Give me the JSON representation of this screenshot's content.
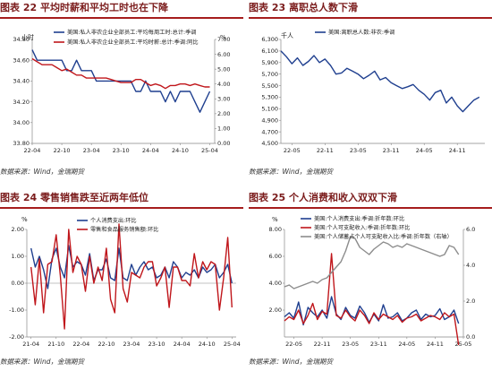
{
  "panels": [
    {
      "title": "图表 22 平均时薪和平均工时也在下降",
      "source": "数据来源：Wind，金瑞期货",
      "chart_data": {
        "type": "line",
        "left_unit": "小时",
        "right_unit": "%",
        "left_ticks": [
          "33.80",
          "34.00",
          "34.20",
          "34.40",
          "34.60",
          "34.80"
        ],
        "left_lim": [
          33.8,
          34.8
        ],
        "right_ticks": [
          "0.00",
          "1.00",
          "2.00",
          "3.00",
          "4.00",
          "5.00",
          "6.00",
          "7.00"
        ],
        "right_lim": [
          0,
          7
        ],
        "x_ticks": [
          "22-04",
          "22-10",
          "23-04",
          "23-10",
          "24-04",
          "24-10",
          "25-04"
        ],
        "series": [
          {
            "name": "美国:私人非农企业全部员工:平均每周工时:总计:季调",
            "axis": "left",
            "color": "#1f3f8f",
            "x": [
              "22-04",
              "22-05",
              "22-06",
              "22-07",
              "22-08",
              "22-09",
              "22-10",
              "22-11",
              "22-12",
              "23-01",
              "23-02",
              "23-03",
              "23-04",
              "23-05",
              "23-06",
              "23-07",
              "23-08",
              "23-09",
              "23-10",
              "23-11",
              "23-12",
              "24-01",
              "24-02",
              "24-03",
              "24-04",
              "24-05",
              "24-06",
              "24-07",
              "24-08",
              "24-09",
              "24-10",
              "24-11",
              "24-12",
              "25-01",
              "25-02",
              "25-03",
              "25-04"
            ],
            "values": [
              34.7,
              34.6,
              34.6,
              34.6,
              34.6,
              34.6,
              34.6,
              34.5,
              34.5,
              34.6,
              34.5,
              34.5,
              34.5,
              34.4,
              34.4,
              34.4,
              34.4,
              34.4,
              34.4,
              34.4,
              34.4,
              34.3,
              34.3,
              34.4,
              34.3,
              34.3,
              34.3,
              34.2,
              34.3,
              34.2,
              34.3,
              34.3,
              34.3,
              34.2,
              34.1,
              34.2,
              34.3
            ]
          },
          {
            "name": "美国:私人非农企业全部员工:平均时薪:总计:季调:同比",
            "axis": "right",
            "color": "#c0161b",
            "x": [
              "22-04",
              "22-05",
              "22-06",
              "22-07",
              "22-08",
              "22-09",
              "22-10",
              "22-11",
              "22-12",
              "23-01",
              "23-02",
              "23-03",
              "23-04",
              "23-05",
              "23-06",
              "23-07",
              "23-08",
              "23-09",
              "23-10",
              "23-11",
              "23-12",
              "24-01",
              "24-02",
              "24-03",
              "24-04",
              "24-05",
              "24-06",
              "24-07",
              "24-08",
              "24-09",
              "24-10",
              "24-11",
              "24-12",
              "25-01",
              "25-02",
              "25-03",
              "25-04"
            ],
            "values": [
              5.7,
              5.5,
              5.3,
              5.3,
              5.3,
              5.1,
              4.9,
              5.0,
              4.8,
              4.6,
              4.6,
              4.4,
              4.4,
              4.4,
              4.4,
              4.4,
              4.3,
              4.2,
              4.1,
              4.1,
              4.1,
              4.3,
              4.3,
              4.1,
              3.9,
              4.0,
              3.9,
              3.7,
              3.9,
              3.9,
              4.0,
              4.0,
              3.9,
              4.0,
              3.9,
              3.8,
              3.8
            ]
          }
        ]
      }
    },
    {
      "title": "图表 23 离职总人数下滑",
      "source": "数据来源：Wind，金瑞期货",
      "chart_data": {
        "type": "line",
        "left_unit": "千人",
        "left_ticks": [
          "4,500",
          "4,700",
          "4,900",
          "5,100",
          "5,300",
          "5,500",
          "5,700",
          "5,900",
          "6,100",
          "6,300"
        ],
        "left_lim": [
          4500,
          6300
        ],
        "x_ticks": [
          "22-05",
          "22-11",
          "23-05",
          "23-11",
          "24-05",
          "24-11"
        ],
        "series": [
          {
            "name": "美国:离职总人数:非农:季调",
            "axis": "left",
            "color": "#1f3f8f",
            "x": [
              "22-03",
              "22-04",
              "22-05",
              "22-06",
              "22-07",
              "22-08",
              "22-09",
              "22-10",
              "22-11",
              "22-12",
              "23-01",
              "23-02",
              "23-03",
              "23-04",
              "23-05",
              "23-06",
              "23-07",
              "23-08",
              "23-09",
              "23-10",
              "23-11",
              "23-12",
              "24-01",
              "24-02",
              "24-03",
              "24-04",
              "24-05",
              "24-06",
              "24-07",
              "24-08",
              "24-09",
              "24-10",
              "24-11",
              "24-12",
              "25-01",
              "25-02",
              "25-03"
            ],
            "values": [
              6100,
              6000,
              5880,
              5980,
              5850,
              5920,
              6020,
              5900,
              5960,
              5850,
              5700,
              5720,
              5800,
              5750,
              5700,
              5620,
              5680,
              5750,
              5600,
              5640,
              5550,
              5500,
              5450,
              5480,
              5520,
              5420,
              5350,
              5250,
              5380,
              5420,
              5200,
              5300,
              5150,
              5050,
              5150,
              5250,
              5300
            ]
          }
        ]
      }
    },
    {
      "title": "图表 24 零售销售跌至近两年低位",
      "source": "数据来源：Wind，金瑞期货",
      "chart_data": {
        "type": "line",
        "left_unit": "%",
        "left_ticks": [
          "-2.00",
          "-1.00",
          "0.00",
          "1.00",
          "2.00"
        ],
        "left_lim": [
          -2,
          2
        ],
        "x_ticks": [
          "21-04",
          "21-10",
          "22-04",
          "22-10",
          "23-04",
          "23-10",
          "24-04",
          "24-10",
          "25-04"
        ],
        "series": [
          {
            "name": "个人消费支出:环比",
            "axis": "left",
            "color": "#1f3f8f",
            "x": [
              "21-04",
              "21-05",
              "21-06",
              "21-07",
              "21-08",
              "21-09",
              "21-10",
              "21-11",
              "21-12",
              "22-01",
              "22-02",
              "22-03",
              "22-04",
              "22-05",
              "22-06",
              "22-07",
              "22-08",
              "22-09",
              "22-10",
              "22-11",
              "22-12",
              "23-01",
              "23-02",
              "23-03",
              "23-04",
              "23-05",
              "23-06",
              "23-07",
              "23-08",
              "23-09",
              "23-10",
              "23-11",
              "23-12",
              "24-01",
              "24-02",
              "24-03",
              "24-04",
              "24-05",
              "24-06",
              "24-07",
              "24-08",
              "24-09",
              "24-10",
              "24-11",
              "24-12",
              "25-01",
              "25-02",
              "25-03",
              "25-04"
            ],
            "values": [
              1.3,
              0.6,
              1.0,
              0.5,
              -0.2,
              0.9,
              1.3,
              0.6,
              0.2,
              1.4,
              0.6,
              0.8,
              0.7,
              0.3,
              1.1,
              0.1,
              0.5,
              0.5,
              0.9,
              0.2,
              0.1,
              1.3,
              0.2,
              0.1,
              0.7,
              0.3,
              0.6,
              0.8,
              0.5,
              0.6,
              0.2,
              0.3,
              0.6,
              0.2,
              0.8,
              0.6,
              0.2,
              0.4,
              0.3,
              0.5,
              0.2,
              0.6,
              0.4,
              0.5,
              0.7,
              0.2,
              0.4,
              0.7,
              0.0
            ]
          },
          {
            "name": "零售和食品服务销售额:环比",
            "axis": "left",
            "color": "#c0161b",
            "x": [
              "21-04",
              "21-05",
              "21-06",
              "21-07",
              "21-08",
              "21-09",
              "21-10",
              "21-11",
              "21-12",
              "22-01",
              "22-02",
              "22-03",
              "22-04",
              "22-05",
              "22-06",
              "22-07",
              "22-08",
              "22-09",
              "22-10",
              "22-11",
              "22-12",
              "23-01",
              "23-02",
              "23-03",
              "23-04",
              "23-05",
              "23-06",
              "23-07",
              "23-08",
              "23-09",
              "23-10",
              "23-11",
              "23-12",
              "24-01",
              "24-02",
              "24-03",
              "24-04",
              "24-05",
              "24-06",
              "24-07",
              "24-08",
              "24-09",
              "24-10",
              "24-11",
              "24-12",
              "25-01",
              "25-02",
              "25-03",
              "25-04"
            ],
            "values": [
              0.6,
              -0.8,
              0.9,
              -1.1,
              0.7,
              0.8,
              1.8,
              0.3,
              -1.7,
              2.0,
              0.4,
              1.0,
              0.7,
              -0.3,
              1.0,
              0.0,
              0.6,
              0.1,
              1.3,
              -0.6,
              -1.1,
              2.2,
              -0.2,
              -0.7,
              0.4,
              0.3,
              0.2,
              0.6,
              0.8,
              0.8,
              -0.1,
              0.2,
              0.6,
              -0.9,
              0.6,
              0.6,
              0.1,
              0.1,
              -0.1,
              1.1,
              0.2,
              0.8,
              0.5,
              0.8,
              0.7,
              -1.0,
              0.2,
              1.7,
              -0.9
            ]
          }
        ]
      }
    },
    {
      "title": "图表 25 个人消费和收入双双下滑",
      "source": "数据来源：Wind，金瑞期货",
      "chart_data": {
        "type": "line",
        "left_unit": "%",
        "left_ticks": [
          "2.00",
          "4.00",
          "6.00",
          "8.00"
        ],
        "left_lim": [
          0,
          8
        ],
        "right_ticks": [
          "0.0",
          "2.0",
          "4.0",
          "6.0"
        ],
        "right_lim": [
          0,
          6
        ],
        "x_ticks": [
          "22-05",
          "22-11",
          "23-05",
          "23-11",
          "24-05",
          "24-11",
          "25-05"
        ],
        "series": [
          {
            "name": "美国:个人消费支出:季调:折年数:环比",
            "axis": "left",
            "color": "#1f3f8f",
            "x": [
              "22-03",
              "22-04",
              "22-05",
              "22-06",
              "22-07",
              "22-08",
              "22-09",
              "22-10",
              "22-11",
              "22-12",
              "23-01",
              "23-02",
              "23-03",
              "23-04",
              "23-05",
              "23-06",
              "23-07",
              "23-08",
              "23-09",
              "23-10",
              "23-11",
              "23-12",
              "24-01",
              "24-02",
              "24-03",
              "24-04",
              "24-05",
              "24-06",
              "24-07",
              "24-08",
              "24-09",
              "24-10",
              "24-11",
              "24-12",
              "25-01",
              "25-02",
              "25-03",
              "25-04"
            ],
            "values": [
              1.5,
              1.8,
              1.4,
              2.6,
              0.9,
              2.2,
              1.8,
              1.5,
              2.0,
              1.4,
              3.0,
              1.7,
              1.3,
              2.2,
              1.6,
              1.4,
              2.3,
              1.8,
              1.1,
              1.7,
              1.2,
              2.4,
              1.4,
              1.5,
              1.8,
              1.2,
              1.4,
              1.8,
              2.0,
              1.3,
              1.7,
              1.5,
              1.6,
              2.1,
              1.3,
              1.5,
              2.0,
              1.0
            ]
          },
          {
            "name": "美国:个人可支配收入:季调:折年数:环比",
            "axis": "left",
            "color": "#c0161b",
            "x": [
              "22-03",
              "22-04",
              "22-05",
              "22-06",
              "22-07",
              "22-08",
              "22-09",
              "22-10",
              "22-11",
              "22-12",
              "23-01",
              "23-02",
              "23-03",
              "23-04",
              "23-05",
              "23-06",
              "23-07",
              "23-08",
              "23-09",
              "23-10",
              "23-11",
              "23-12",
              "24-01",
              "24-02",
              "24-03",
              "24-04",
              "24-05",
              "24-06",
              "24-07",
              "24-08",
              "24-09",
              "24-10",
              "24-11",
              "24-12",
              "25-01",
              "25-02",
              "25-03",
              "25-04"
            ],
            "values": [
              1.2,
              1.5,
              1.3,
              2.0,
              1.0,
              1.6,
              2.5,
              1.3,
              1.9,
              1.7,
              6.2,
              1.6,
              1.4,
              2.0,
              1.5,
              1.2,
              2.0,
              1.6,
              1.0,
              1.8,
              1.3,
              1.7,
              1.5,
              1.3,
              1.6,
              1.1,
              1.4,
              1.5,
              1.7,
              1.2,
              1.4,
              1.6,
              1.5,
              1.3,
              1.8,
              1.5,
              1.7,
              -0.6
            ]
          },
          {
            "name": "美国:个人储蓄占个人可支配收入比:季调:折年数（右轴）",
            "axis": "right",
            "color": "#8c8c8c",
            "x": [
              "22-03",
              "22-04",
              "22-05",
              "22-06",
              "22-07",
              "22-08",
              "22-09",
              "22-10",
              "22-11",
              "22-12",
              "23-01",
              "23-02",
              "23-03",
              "23-04",
              "23-05",
              "23-06",
              "23-07",
              "23-08",
              "23-09",
              "23-10",
              "23-11",
              "23-12",
              "24-01",
              "24-02",
              "24-03",
              "24-04",
              "24-05",
              "24-06",
              "24-07",
              "24-08",
              "24-09",
              "24-10",
              "24-11",
              "24-12",
              "25-01",
              "25-02",
              "25-03",
              "25-04"
            ],
            "values": [
              2.8,
              2.9,
              2.7,
              2.8,
              2.9,
              3.0,
              3.1,
              3.0,
              3.2,
              3.3,
              3.6,
              3.9,
              4.2,
              4.8,
              5.6,
              5.5,
              5.0,
              4.8,
              4.6,
              4.9,
              5.1,
              5.3,
              5.2,
              5.0,
              5.1,
              5.0,
              5.2,
              5.1,
              5.0,
              4.9,
              4.8,
              4.7,
              4.6,
              4.5,
              4.6,
              5.1,
              5.0,
              4.6
            ]
          }
        ]
      }
    }
  ]
}
